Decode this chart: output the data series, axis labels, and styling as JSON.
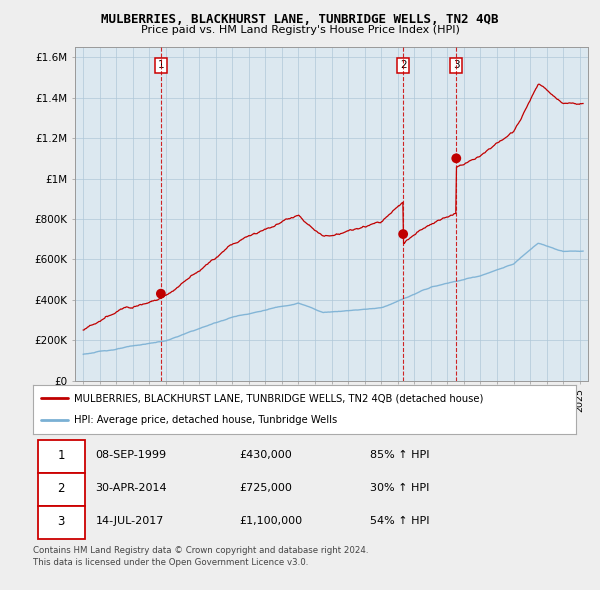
{
  "title": "MULBERRIES, BLACKHURST LANE, TUNBRIDGE WELLS, TN2 4QB",
  "subtitle": "Price paid vs. HM Land Registry's House Price Index (HPI)",
  "ylim": [
    0,
    1650000
  ],
  "yticks": [
    0,
    200000,
    400000,
    600000,
    800000,
    1000000,
    1200000,
    1400000,
    1600000
  ],
  "ytick_labels": [
    "£0",
    "£200K",
    "£400K",
    "£600K",
    "£800K",
    "£1M",
    "£1.2M",
    "£1.4M",
    "£1.6M"
  ],
  "sale_dates": [
    1999.69,
    2014.33,
    2017.54
  ],
  "sale_prices": [
    430000,
    725000,
    1100000
  ],
  "sale_labels": [
    "1",
    "2",
    "3"
  ],
  "line_color_red": "#c00000",
  "line_color_blue": "#7ab0d4",
  "vline_color": "#cc0000",
  "legend_entries": [
    "MULBERRIES, BLACKHURST LANE, TUNBRIDGE WELLS, TN2 4QB (detached house)",
    "HPI: Average price, detached house, Tunbridge Wells"
  ],
  "table_data": [
    [
      "1",
      "08-SEP-1999",
      "£430,000",
      "85% ↑ HPI"
    ],
    [
      "2",
      "30-APR-2014",
      "£725,000",
      "30% ↑ HPI"
    ],
    [
      "3",
      "14-JUL-2017",
      "£1,100,000",
      "54% ↑ HPI"
    ]
  ],
  "footnote1": "Contains HM Land Registry data © Crown copyright and database right 2024.",
  "footnote2": "This data is licensed under the Open Government Licence v3.0.",
  "bg_color": "#eeeeee",
  "plot_bg_color": "#dce8f0",
  "grid_color": "#b0c8d8"
}
